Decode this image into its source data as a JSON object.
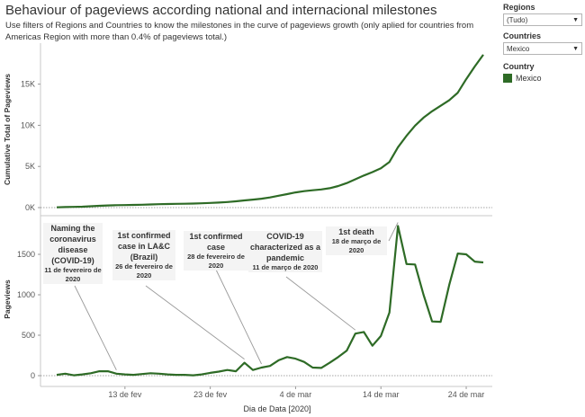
{
  "header": {
    "title": "Behaviour of pageviews according national and internacional milestones",
    "subtitle": "Use filters of Regions and Countries to know the milestones in the curve of pageviews growth (only aplied for countries from Americas Region with more than 0.4% of pageviews total.)"
  },
  "filters": {
    "regions": {
      "label": "Regions",
      "value": "(Tudo)"
    },
    "countries": {
      "label": "Countries",
      "value": "Mexico"
    },
    "legend": {
      "label": "Country",
      "item": "Mexico",
      "color": "#2e6b26"
    }
  },
  "annotations": [
    {
      "title": "Naming the coronavirus disease (COVID-19)",
      "date": "11 de fevereiro de 2020"
    },
    {
      "title": "1st confirmed case in LA&C (Brazil)",
      "date": "26 de fevereiro de 2020"
    },
    {
      "title": "1st confirmed case",
      "date": "28 de fevereiro de 2020"
    },
    {
      "title": "COVID-19 characterized as a pandemic",
      "date": "11 de março de 2020"
    },
    {
      "title": "1st death",
      "date": "18 de março de 2020"
    }
  ],
  "chart_data": {
    "type": "line",
    "xlabel": "Dia de Data [2020]",
    "x_ticks": [
      "13 de fev",
      "23 de fev",
      "4 de mar",
      "14 de mar",
      "24 de mar"
    ],
    "x_tick_days": [
      12,
      22,
      32,
      42,
      52
    ],
    "x_range_days": [
      4,
      56
    ],
    "series_color": "#2e6b26",
    "series_name": "Mexico",
    "cumulative": {
      "ylabel": "Cumulative Total of Pageviews",
      "ylim": [
        0,
        19000
      ],
      "y_ticks": [
        "0K",
        "5K",
        "10K",
        "15K"
      ],
      "y_tick_values": [
        0,
        5000,
        10000,
        15000
      ],
      "days": [
        4,
        5,
        6,
        7,
        8,
        9,
        10,
        11,
        12,
        13,
        14,
        15,
        16,
        17,
        18,
        19,
        20,
        21,
        22,
        23,
        24,
        25,
        26,
        27,
        28,
        29,
        30,
        31,
        32,
        33,
        34,
        35,
        36,
        37,
        38,
        39,
        40,
        41,
        42,
        43,
        44,
        45,
        46,
        47,
        48,
        49,
        50,
        51,
        52,
        53,
        54
      ],
      "values": [
        30,
        60,
        80,
        110,
        160,
        210,
        260,
        290,
        300,
        320,
        340,
        370,
        400,
        430,
        450,
        460,
        480,
        510,
        550,
        600,
        660,
        740,
        850,
        950,
        1050,
        1200,
        1400,
        1600,
        1800,
        1950,
        2050,
        2150,
        2300,
        2550,
        2900,
        3350,
        3800,
        4200,
        4650,
        5400,
        7150,
        8500,
        9700,
        10650,
        11400,
        12050,
        12700,
        13600,
        15200,
        16700,
        18100
      ]
    },
    "daily": {
      "ylabel": "Pageviews",
      "ylim": [
        -60,
        1950
      ],
      "y_ticks": [
        "0",
        "500",
        "1000",
        "1500"
      ],
      "y_tick_values": [
        0,
        500,
        1000,
        1500
      ],
      "days": [
        4,
        5,
        6,
        7,
        8,
        9,
        10,
        11,
        12,
        13,
        14,
        15,
        16,
        17,
        18,
        19,
        20,
        21,
        22,
        23,
        24,
        25,
        26,
        27,
        28,
        29,
        30,
        31,
        32,
        33,
        34,
        35,
        36,
        37,
        38,
        39,
        40,
        41,
        42,
        43,
        44,
        45,
        46,
        47,
        48,
        49,
        50,
        51,
        52,
        53,
        54
      ],
      "values": [
        10,
        25,
        5,
        15,
        30,
        55,
        55,
        25,
        15,
        10,
        20,
        30,
        25,
        15,
        10,
        10,
        5,
        15,
        35,
        50,
        70,
        55,
        160,
        70,
        100,
        120,
        190,
        230,
        210,
        170,
        100,
        95,
        160,
        230,
        310,
        520,
        540,
        370,
        490,
        780,
        1850,
        1380,
        1375,
        1000,
        670,
        665,
        1120,
        1510,
        1500,
        1410,
        1400
      ]
    }
  }
}
